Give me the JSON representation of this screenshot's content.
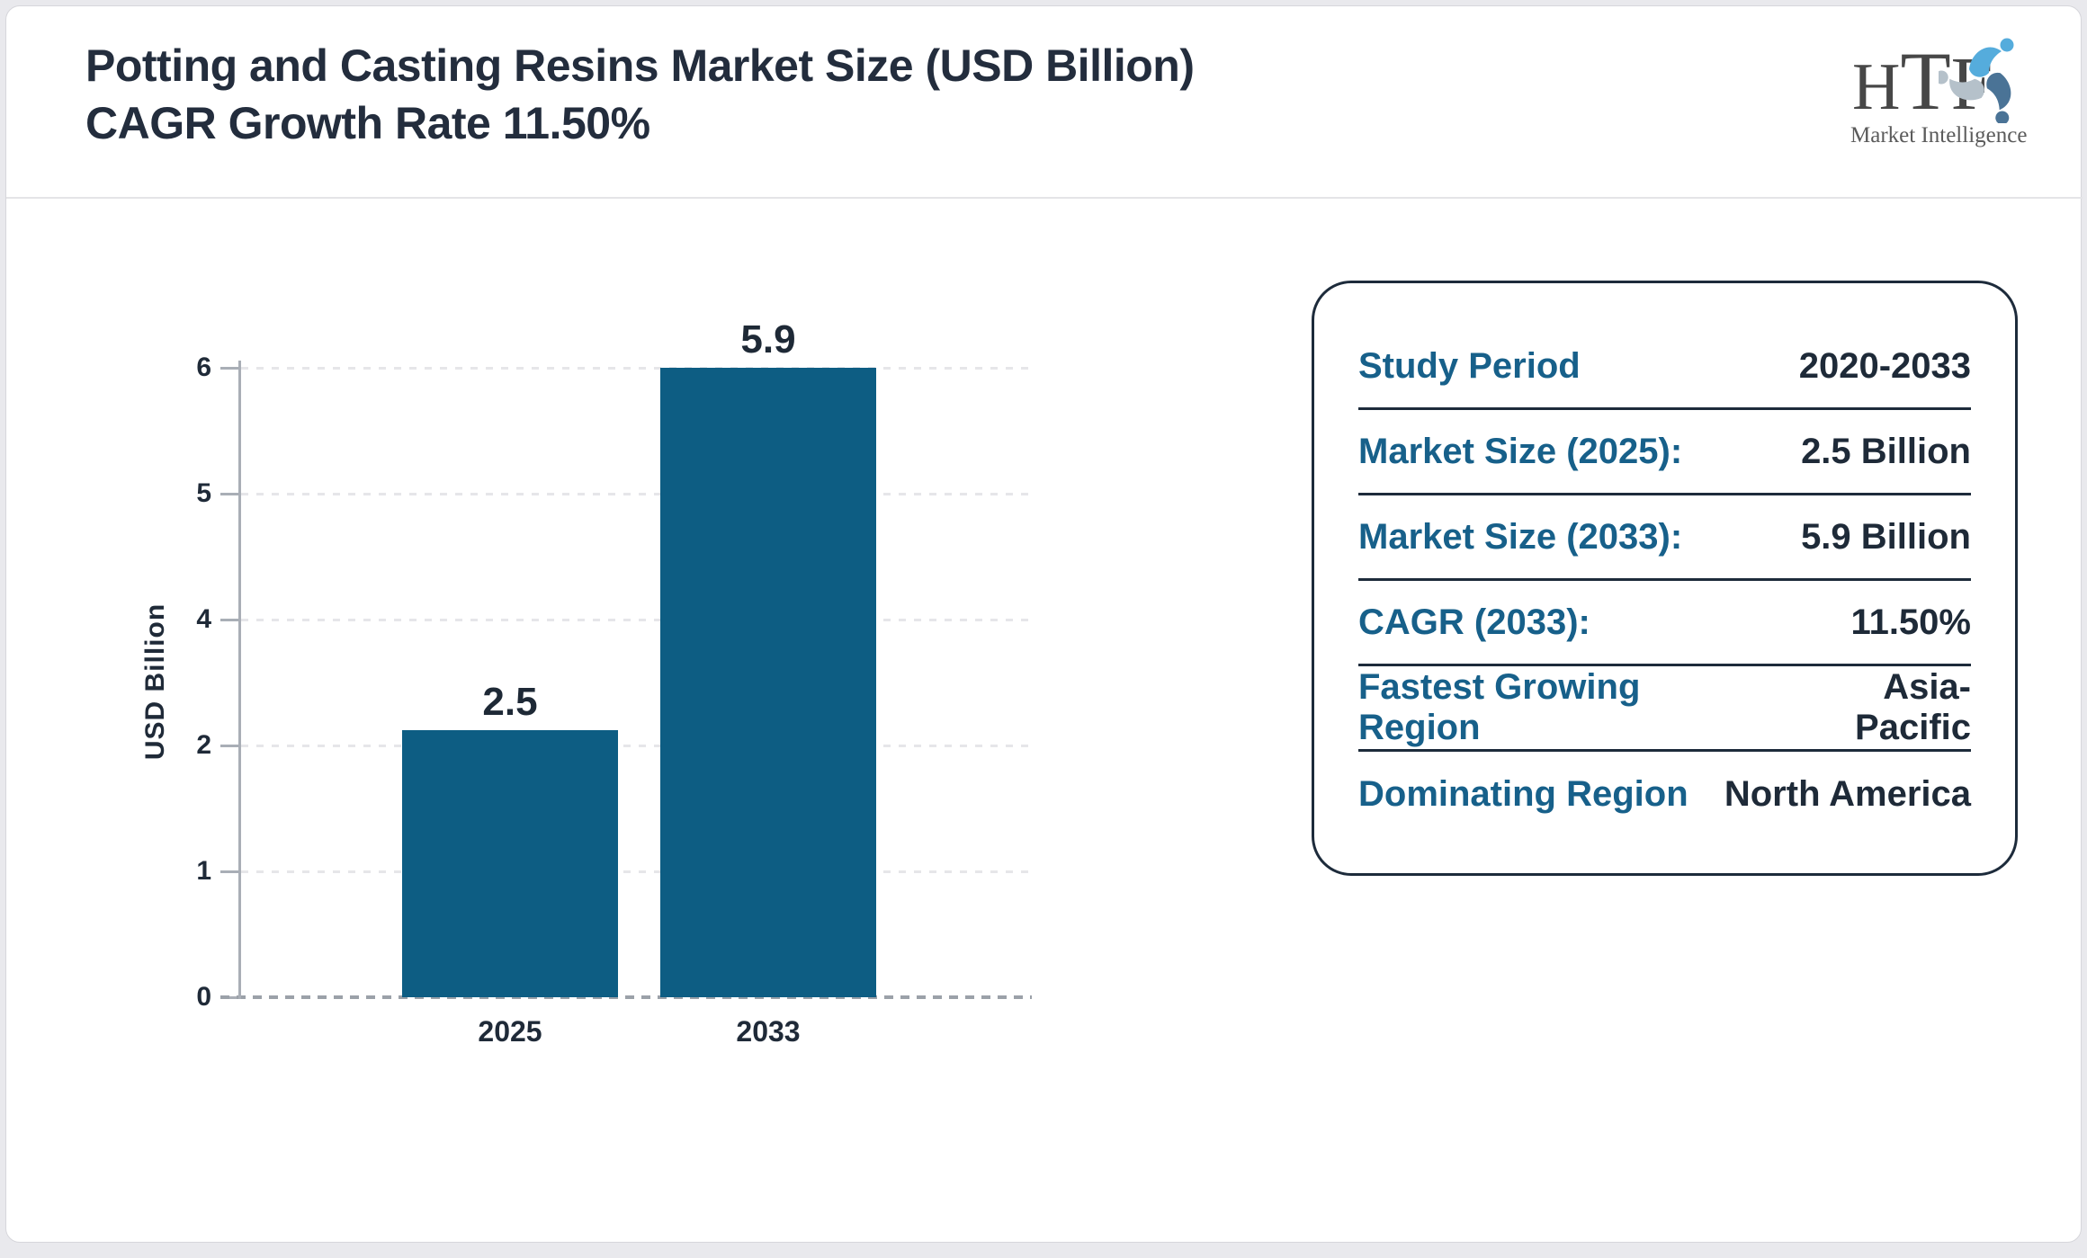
{
  "header": {
    "title": "Potting and Casting Resins Market Size (USD Billion) CAGR Growth Rate 11.50%",
    "logo": {
      "text_h": "H",
      "text_t": "T",
      "text_f": "F",
      "subtitle": "Market Intelligence"
    }
  },
  "chart_data": {
    "type": "bar",
    "title": "Potting and Casting Resins Market Size (USD Billion)",
    "categories": [
      "2025",
      "2033"
    ],
    "values": [
      2.5,
      5.9
    ],
    "bar_labels": [
      "2.5",
      "5.9"
    ],
    "xlabel": "",
    "ylabel": "USD Billion",
    "ytick_labels": [
      "0",
      "1",
      "2",
      "4",
      "5",
      "6"
    ],
    "ylim": [
      0,
      6
    ],
    "grid": true,
    "legend": false,
    "bar_color": "#0d5d83"
  },
  "info_card": {
    "rows": [
      {
        "label": "Study Period",
        "value": "2020-2033"
      },
      {
        "label": "Market Size (2025):",
        "value": "2.5 Billion"
      },
      {
        "label": "Market Size (2033):",
        "value": "5.9 Billion"
      },
      {
        "label": "CAGR (2033):",
        "value": "11.50%"
      },
      {
        "label": "Fastest Growing Region",
        "value": "Asia-Pacific"
      },
      {
        "label": "Dominating Region",
        "value": "North America"
      }
    ]
  },
  "colors": {
    "bar": "#0d5d83",
    "accent_teal": "#17608a",
    "dark_navy": "#1e2a38",
    "page_background": "#e9e9ed"
  }
}
